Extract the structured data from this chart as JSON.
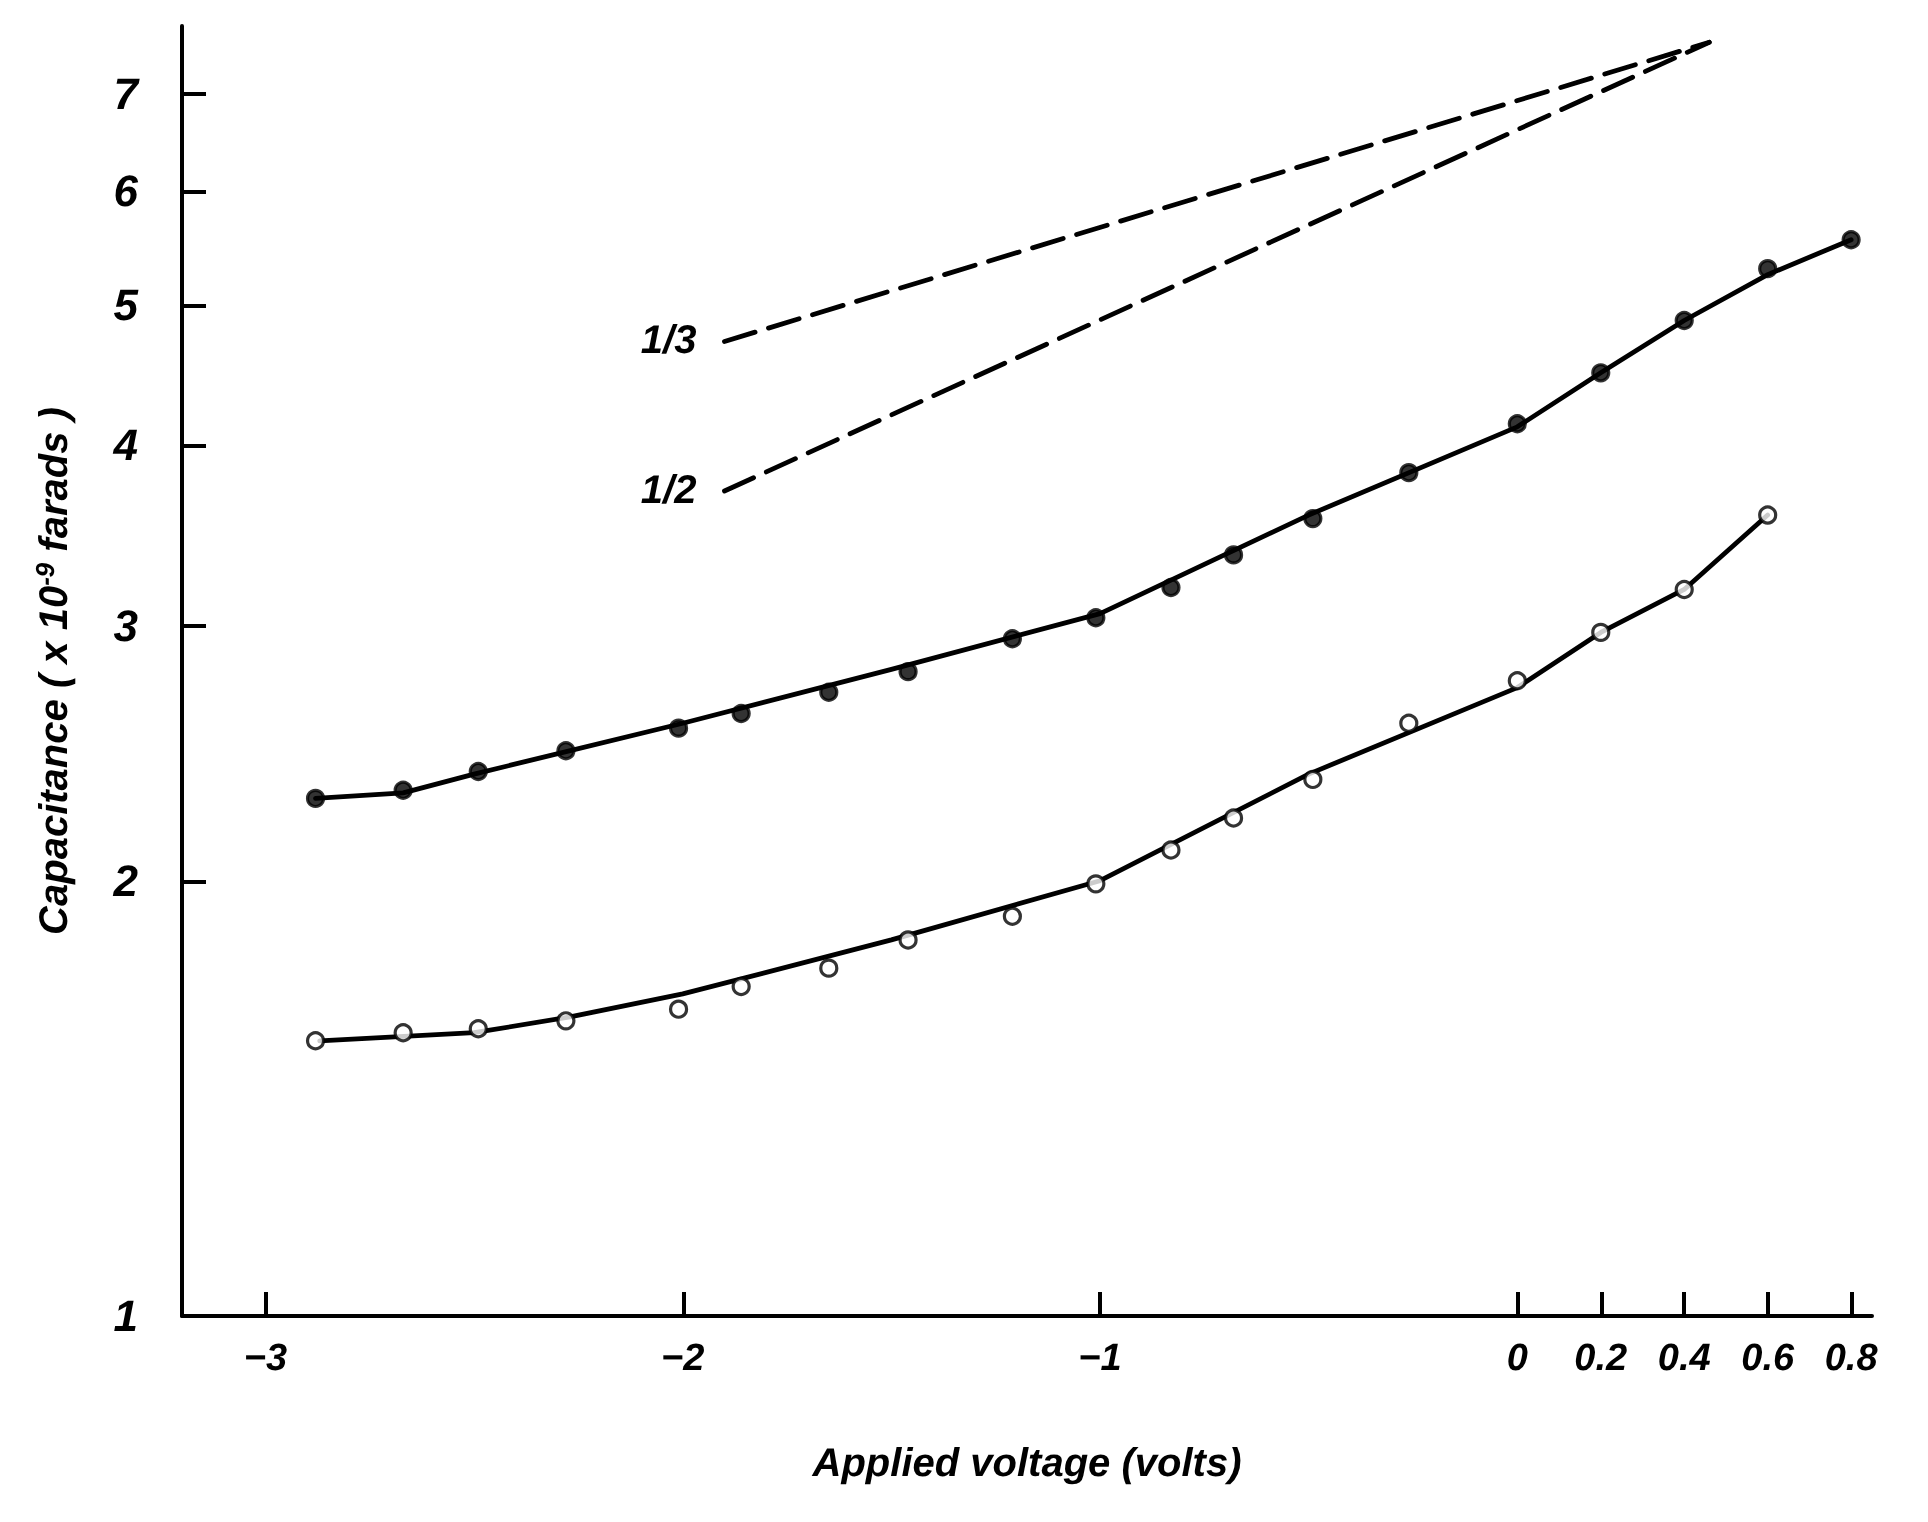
{
  "chart_data": {
    "type": "scatter",
    "xlabel": "Applied voltage (volts)",
    "ylabel": "Capacitance ( x 10$^{-9}$ farads )",
    "log": true,
    "grid": false,
    "legend": false,
    "xlim": [
      -3.2,
      0.85
    ],
    "xticks": [
      -3,
      -2,
      -1,
      0,
      0.2,
      0.4,
      0.6,
      0.8
    ],
    "ylim": [
      1,
      7.8
    ],
    "yticks": [
      1,
      2,
      3,
      4,
      5,
      6,
      7
    ],
    "series": [
      {
        "marker": "circle",
        "color": "#000000",
        "x": [
          -2.88,
          -2.67,
          -2.49,
          -2.28,
          -2.01,
          -1.86,
          -1.65,
          -1.46,
          -1.21,
          -1.01,
          -0.83,
          -0.68,
          -0.49,
          -0.26,
          0,
          0.2,
          0.4,
          0.6,
          0.8
        ],
        "values": [
          2.28,
          2.31,
          2.38,
          2.46,
          2.55,
          2.61,
          2.7,
          2.79,
          2.94,
          3.04,
          3.19,
          3.36,
          3.56,
          3.83,
          4.14,
          4.49,
          4.88,
          5.3,
          5.55
        ]
      },
      {
        "marker": "circle",
        "color": "#ffffff",
        "x": [
          -2.88,
          -2.67,
          -2.49,
          -2.28,
          -2.01,
          -1.86,
          -1.65,
          -1.46,
          -1.21,
          -1.01,
          -0.83,
          -0.68,
          -0.49,
          -0.26,
          0,
          0.2,
          0.4,
          0.6
        ],
        "values": [
          1.55,
          1.57,
          1.58,
          1.6,
          1.63,
          1.69,
          1.74,
          1.82,
          1.89,
          1.99,
          2.1,
          2.21,
          2.35,
          2.57,
          2.75,
          2.97,
          3.18,
          3.58
        ]
      },
      {
        "type": "line",
        "marker": "none",
        "line_style": "solid",
        "color": "#000000",
        "x": [
          -2.88,
          -2.67,
          -2.5,
          -2,
          -1.5,
          -1,
          -0.5,
          0,
          0.2,
          0.4,
          0.6,
          0.8
        ],
        "values": [
          2.28,
          2.3,
          2.37,
          2.57,
          2.8,
          3.06,
          3.58,
          4.12,
          4.49,
          4.88,
          5.25,
          5.55
        ]
      },
      {
        "type": "line",
        "marker": "none",
        "line_style": "solid",
        "color": "#000000",
        "x": [
          -2.87,
          -2.5,
          -2.27,
          -2,
          -1.5,
          -1,
          -0.5,
          0,
          0.2,
          0.4,
          0.6
        ],
        "values": [
          1.55,
          1.57,
          1.61,
          1.67,
          1.82,
          2.0,
          2.37,
          2.72,
          2.97,
          3.18,
          3.58
        ]
      },
      {
        "type": "line",
        "name": "1/3",
        "marker": "none",
        "line_style": "dashed",
        "color": "#000000",
        "x": [
          -1.9,
          0.46
        ],
        "values": [
          4.72,
          7.6
        ]
      },
      {
        "type": "line",
        "name": "1/2",
        "marker": "none",
        "line_style": "dashed",
        "color": "#000000",
        "x": [
          -1.9,
          0.46
        ],
        "values": [
          3.72,
          7.6
        ]
      }
    ]
  }
}
